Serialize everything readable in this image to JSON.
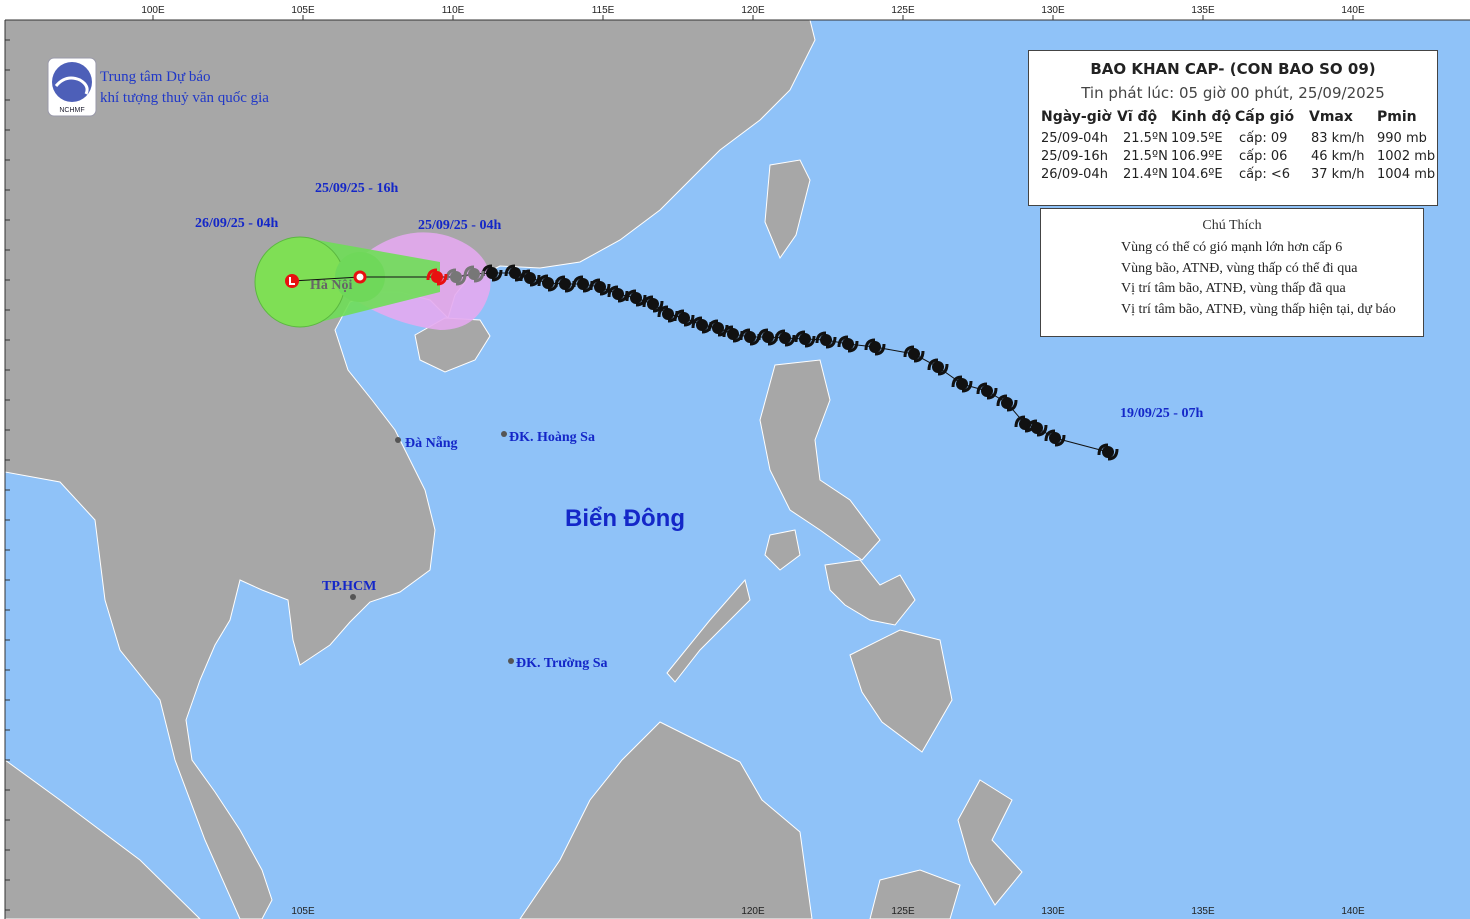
{
  "header": {
    "org_line1": "Trung tâm Dự báo",
    "org_line2": "khí tượng thuỷ văn quốc gia",
    "logo_text": "NCHMF"
  },
  "top_axis": [
    "100E",
    "105E",
    "110E",
    "115E",
    "120E",
    "125E",
    "130E",
    "135E",
    "140E"
  ],
  "bottom_axis": [
    "105E",
    "120E",
    "125E",
    "130E",
    "135E",
    "140E"
  ],
  "info_box": {
    "title": "BAO KHAN CAP- (CON BAO SO 09)",
    "subtitle": "Tin phát lúc: 05 giờ 00 phút, 25/09/2025",
    "columns": [
      "Ngày-giờ",
      "Vĩ độ",
      "Kinh độ",
      "Cấp gió",
      "Vmax",
      "Pmin"
    ],
    "rows": [
      [
        "25/09-04h",
        "21.5ºN",
        "109.5ºE",
        "cấp: 09",
        "83 km/h",
        "990 mb"
      ],
      [
        "25/09-16h",
        "21.5ºN",
        "106.9ºE",
        "cấp: 06",
        "46 km/h",
        "1002 mb"
      ],
      [
        "26/09-04h",
        "21.4ºN",
        "104.6ºE",
        "cấp: <6",
        "37 km/h",
        "1004 mb"
      ]
    ]
  },
  "legend": {
    "title": "Chú Thích",
    "items": [
      "Vùng có thể có gió mạnh lớn hơn cấp 6",
      "Vùng bão, ATNĐ, vùng thấp có thể đi qua",
      "Vị trí tâm bão, ATNĐ, vùng thấp đã qua",
      "Vị trí tâm bão, ATNĐ, vùng thấp hiện tại, dự báo"
    ]
  },
  "map_labels": {
    "forecast_16h": "25/09/25 - 16h",
    "forecast_04h": "26/09/25 - 04h",
    "current": "25/09/25 - 04h",
    "origin": "19/09/25 - 07h",
    "hanoi": "Hà Nội",
    "danang": "Đà Nẵng",
    "hoangsa": "ĐK. Hoàng Sa",
    "sea": "Biển Đông",
    "hcm": "TP.HCM",
    "truongsa": "ĐK. Trường Sa"
  }
}
